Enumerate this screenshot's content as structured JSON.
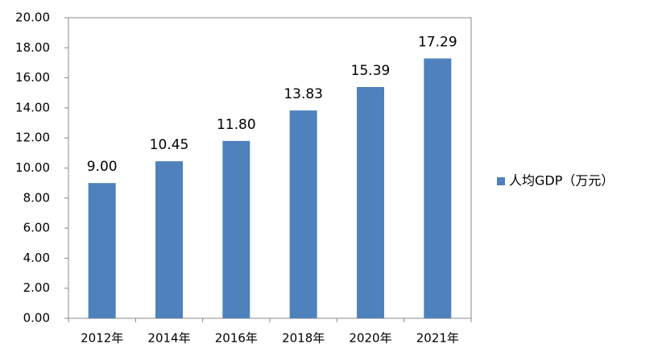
{
  "chart_data": {
    "type": "bar",
    "categories": [
      "2012年",
      "2014年",
      "2016年",
      "2018年",
      "2020年",
      "2021年"
    ],
    "series": [
      {
        "name": "人均GDP（万元）",
        "color": "#4f81bd",
        "values": [
          9.0,
          10.45,
          11.8,
          13.83,
          15.39,
          17.29
        ],
        "value_labels": [
          "9.00",
          "10.45",
          "11.80",
          "13.83",
          "15.39",
          "17.29"
        ]
      }
    ],
    "ylim": [
      0,
      20
    ],
    "yticks": [
      {
        "value": 0,
        "label": "0.00"
      },
      {
        "value": 2,
        "label": "2.00"
      },
      {
        "value": 4,
        "label": "4.00"
      },
      {
        "value": 6,
        "label": "6.00"
      },
      {
        "value": 8,
        "label": "8.00"
      },
      {
        "value": 10,
        "label": "10.00"
      },
      {
        "value": 12,
        "label": "12.00"
      },
      {
        "value": 14,
        "label": "14.00"
      },
      {
        "value": 16,
        "label": "16.00"
      },
      {
        "value": 18,
        "label": "18.00"
      },
      {
        "value": 20,
        "label": "20.00"
      }
    ],
    "grid": false,
    "legend": "right"
  }
}
